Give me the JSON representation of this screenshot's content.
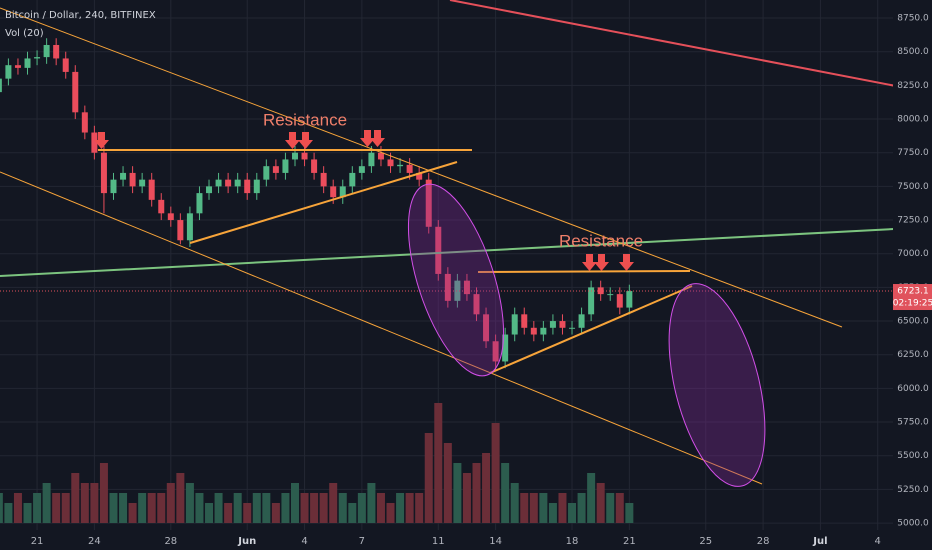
{
  "header": {
    "symbol": "Bitcoin / Dollar, 240, BITFINEX",
    "indicator": "Vol (20)",
    "countdown": "02:19:25"
  },
  "annotations": [
    "Resistance",
    "Resistance"
  ],
  "chart_data": {
    "type": "candlestick",
    "up_color": "#53b987",
    "down_color": "#eb4d5c",
    "volume_up_color": "#2c5c4e",
    "volume_down_color": "#6b2e38",
    "last_price": 6723.1,
    "xlim": [
      -1.94,
      44.8
    ],
    "ylim": [
      4800,
      8884
    ],
    "xticks": [
      {
        "value": 0,
        "label": "21"
      },
      {
        "value": 3,
        "label": "24"
      },
      {
        "value": 7,
        "label": "28"
      },
      {
        "value": 11,
        "label": "Jun"
      },
      {
        "value": 14,
        "label": "4"
      },
      {
        "value": 17,
        "label": "7"
      },
      {
        "value": 21,
        "label": "11"
      },
      {
        "value": 24,
        "label": "14"
      },
      {
        "value": 28,
        "label": "18"
      },
      {
        "value": 31,
        "label": "21"
      },
      {
        "value": 35,
        "label": "25"
      },
      {
        "value": 38,
        "label": "28"
      },
      {
        "value": 41,
        "label": "Jul"
      },
      {
        "value": 44,
        "label": "4"
      }
    ],
    "yticks": [
      {
        "value": 5000,
        "label": "5000.0"
      },
      {
        "value": 5250,
        "label": "5250.0"
      },
      {
        "value": 5500,
        "label": "5500.0"
      },
      {
        "value": 5750,
        "label": "5750.0"
      },
      {
        "value": 6000,
        "label": "6000.0"
      },
      {
        "value": 6250,
        "label": "6250.0"
      },
      {
        "value": 6500,
        "label": "6500.0"
      },
      {
        "value": 6750,
        "label": "6750.0"
      },
      {
        "value": 7000,
        "label": "7000.0"
      },
      {
        "value": 7250,
        "label": "7250.0"
      },
      {
        "value": 7500,
        "label": "7500.0"
      },
      {
        "value": 7750,
        "label": "7750.0"
      },
      {
        "value": 8000,
        "label": "8000.0"
      },
      {
        "value": 8250,
        "label": "8250.0"
      },
      {
        "value": 8500,
        "label": "8500.0"
      },
      {
        "value": 8750,
        "label": "8750.0"
      }
    ],
    "x": [
      -2,
      -1.5,
      -1,
      -0.5,
      0,
      0.5,
      1,
      1.5,
      2,
      2.5,
      3,
      3.5,
      4,
      4.5,
      5,
      5.5,
      6,
      6.5,
      7,
      7.5,
      8,
      8.5,
      9,
      9.5,
      10,
      10.5,
      11,
      11.5,
      12,
      12.5,
      13,
      13.5,
      14,
      14.5,
      15,
      15.5,
      16,
      16.5,
      17,
      17.5,
      18,
      18.5,
      19,
      19.5,
      20,
      20.5,
      21,
      21.5,
      22,
      22.5,
      23,
      23.5,
      24,
      24.5,
      25,
      25.5,
      26,
      26.5,
      27,
      27.5,
      28,
      28.5,
      29,
      29.5,
      30,
      30.5,
      31
    ],
    "ohlc": [
      [
        8200,
        8350,
        8150,
        8300
      ],
      [
        8300,
        8450,
        8250,
        8400
      ],
      [
        8400,
        8450,
        8330,
        8380
      ],
      [
        8380,
        8500,
        8330,
        8450
      ],
      [
        8450,
        8510,
        8400,
        8460
      ],
      [
        8460,
        8600,
        8410,
        8550
      ],
      [
        8550,
        8600,
        8400,
        8450
      ],
      [
        8450,
        8500,
        8300,
        8350
      ],
      [
        8350,
        8400,
        8000,
        8050
      ],
      [
        8050,
        8100,
        7850,
        7900
      ],
      [
        7900,
        7950,
        7700,
        7750
      ],
      [
        7750,
        7800,
        7300,
        7450
      ],
      [
        7450,
        7600,
        7400,
        7550
      ],
      [
        7550,
        7650,
        7500,
        7600
      ],
      [
        7600,
        7650,
        7450,
        7500
      ],
      [
        7500,
        7600,
        7450,
        7550
      ],
      [
        7550,
        7600,
        7350,
        7400
      ],
      [
        7400,
        7450,
        7250,
        7300
      ],
      [
        7300,
        7350,
        7200,
        7250
      ],
      [
        7250,
        7300,
        7070,
        7100
      ],
      [
        7100,
        7350,
        7050,
        7300
      ],
      [
        7300,
        7500,
        7250,
        7450
      ],
      [
        7450,
        7550,
        7400,
        7500
      ],
      [
        7500,
        7600,
        7450,
        7550
      ],
      [
        7550,
        7600,
        7450,
        7500
      ],
      [
        7500,
        7600,
        7450,
        7550
      ],
      [
        7550,
        7600,
        7400,
        7450
      ],
      [
        7450,
        7600,
        7400,
        7550
      ],
      [
        7550,
        7700,
        7500,
        7650
      ],
      [
        7650,
        7700,
        7550,
        7600
      ],
      [
        7600,
        7750,
        7550,
        7700
      ],
      [
        7700,
        7800,
        7650,
        7750
      ],
      [
        7750,
        7800,
        7650,
        7700
      ],
      [
        7700,
        7750,
        7550,
        7600
      ],
      [
        7600,
        7650,
        7450,
        7500
      ],
      [
        7500,
        7550,
        7370,
        7420
      ],
      [
        7420,
        7550,
        7370,
        7500
      ],
      [
        7500,
        7650,
        7450,
        7600
      ],
      [
        7600,
        7700,
        7550,
        7650
      ],
      [
        7650,
        7800,
        7600,
        7750
      ],
      [
        7750,
        7800,
        7650,
        7700
      ],
      [
        7700,
        7750,
        7600,
        7650
      ],
      [
        7650,
        7710,
        7600,
        7660
      ],
      [
        7660,
        7710,
        7550,
        7600
      ],
      [
        7600,
        7650,
        7500,
        7550
      ],
      [
        7550,
        7600,
        7150,
        7200
      ],
      [
        7200,
        7250,
        6800,
        6850
      ],
      [
        6850,
        6900,
        6600,
        6650
      ],
      [
        6650,
        6850,
        6600,
        6800
      ],
      [
        6800,
        6850,
        6650,
        6700
      ],
      [
        6700,
        6750,
        6500,
        6550
      ],
      [
        6550,
        6600,
        6300,
        6350
      ],
      [
        6350,
        6400,
        6130,
        6200
      ],
      [
        6200,
        6450,
        6150,
        6400
      ],
      [
        6400,
        6600,
        6350,
        6550
      ],
      [
        6550,
        6600,
        6400,
        6450
      ],
      [
        6450,
        6500,
        6350,
        6400
      ],
      [
        6400,
        6500,
        6350,
        6450
      ],
      [
        6450,
        6550,
        6400,
        6500
      ],
      [
        6500,
        6550,
        6400,
        6450
      ],
      [
        6450,
        6500,
        6400,
        6450
      ],
      [
        6450,
        6600,
        6400,
        6550
      ],
      [
        6550,
        6800,
        6500,
        6750
      ],
      [
        6750,
        6800,
        6650,
        6700
      ],
      [
        6700,
        6750,
        6650,
        6700
      ],
      [
        6700,
        6750,
        6550,
        6600
      ],
      [
        6600,
        6770,
        6550,
        6723.1
      ]
    ],
    "volume": [
      3,
      2,
      3,
      2,
      3,
      4,
      3,
      3,
      5,
      4,
      4,
      6,
      3,
      3,
      2,
      3,
      3,
      3,
      4,
      5,
      4,
      3,
      2,
      3,
      2,
      3,
      2,
      3,
      3,
      2,
      3,
      4,
      3,
      3,
      3,
      4,
      3,
      2,
      3,
      4,
      3,
      2,
      3,
      3,
      3,
      9,
      12,
      8,
      6,
      5,
      6,
      7,
      10,
      6,
      4,
      3,
      3,
      3,
      2,
      3,
      2,
      3,
      5,
      4,
      3,
      3,
      2
    ]
  }
}
